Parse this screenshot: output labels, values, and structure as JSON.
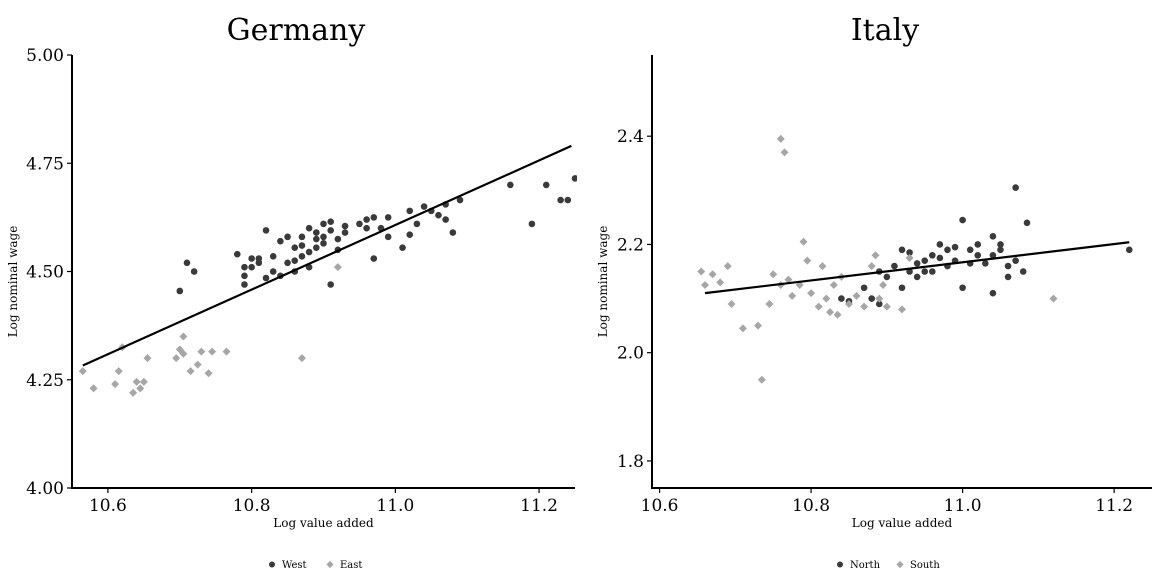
{
  "chart_data": [
    {
      "type": "scatter",
      "title": "Germany",
      "xlabel": "Log value added",
      "ylabel": "Log nominal wage",
      "xlim": [
        10.55,
        11.25
      ],
      "ylim": [
        4.0,
        5.0
      ],
      "xticks": [
        10.6,
        10.8,
        11.0,
        11.2
      ],
      "xtick_labels": [
        "10.6",
        "10.8",
        "11.0",
        "11.2"
      ],
      "yticks": [
        4.0,
        4.25,
        4.5,
        4.75,
        5.0
      ],
      "ytick_labels": [
        "4.00",
        "4.25",
        "4.50",
        "4.75",
        "5.00"
      ],
      "legend_position": "bottom",
      "fit_line": {
        "x": [
          10.565,
          11.245
        ],
        "y": [
          4.283,
          4.79
        ]
      },
      "series": [
        {
          "name": "West",
          "marker": "circle",
          "color": "#3a3a3a",
          "points": [
            [
              10.7,
              4.455
            ],
            [
              10.71,
              4.52
            ],
            [
              10.72,
              4.5
            ],
            [
              10.78,
              4.54
            ],
            [
              10.79,
              4.51
            ],
            [
              10.79,
              4.49
            ],
            [
              10.79,
              4.47
            ],
            [
              10.8,
              4.53
            ],
            [
              10.8,
              4.51
            ],
            [
              10.81,
              4.53
            ],
            [
              10.81,
              4.52
            ],
            [
              10.82,
              4.485
            ],
            [
              10.82,
              4.595
            ],
            [
              10.83,
              4.5
            ],
            [
              10.83,
              4.535
            ],
            [
              10.84,
              4.57
            ],
            [
              10.84,
              4.49
            ],
            [
              10.85,
              4.58
            ],
            [
              10.85,
              4.52
            ],
            [
              10.86,
              4.555
            ],
            [
              10.86,
              4.5
            ],
            [
              10.86,
              4.525
            ],
            [
              10.87,
              4.56
            ],
            [
              10.87,
              4.535
            ],
            [
              10.87,
              4.58
            ],
            [
              10.88,
              4.545
            ],
            [
              10.88,
              4.6
            ],
            [
              10.88,
              4.51
            ],
            [
              10.89,
              4.555
            ],
            [
              10.89,
              4.575
            ],
            [
              10.89,
              4.59
            ],
            [
              10.9,
              4.565
            ],
            [
              10.9,
              4.61
            ],
            [
              10.9,
              4.58
            ],
            [
              10.91,
              4.615
            ],
            [
              10.91,
              4.595
            ],
            [
              10.91,
              4.47
            ],
            [
              10.92,
              4.55
            ],
            [
              10.92,
              4.575
            ],
            [
              10.93,
              4.605
            ],
            [
              10.93,
              4.59
            ],
            [
              10.95,
              4.61
            ],
            [
              10.96,
              4.6
            ],
            [
              10.96,
              4.62
            ],
            [
              10.97,
              4.625
            ],
            [
              10.97,
              4.53
            ],
            [
              10.98,
              4.6
            ],
            [
              10.99,
              4.625
            ],
            [
              10.99,
              4.58
            ],
            [
              11.01,
              4.555
            ],
            [
              11.02,
              4.585
            ],
            [
              11.02,
              4.64
            ],
            [
              11.03,
              4.61
            ],
            [
              11.04,
              4.65
            ],
            [
              11.05,
              4.64
            ],
            [
              11.06,
              4.63
            ],
            [
              11.07,
              4.655
            ],
            [
              11.07,
              4.62
            ],
            [
              11.08,
              4.59
            ],
            [
              11.09,
              4.665
            ],
            [
              11.16,
              4.7
            ],
            [
              11.19,
              4.61
            ],
            [
              11.21,
              4.7
            ],
            [
              11.23,
              4.665
            ],
            [
              11.24,
              4.665
            ],
            [
              11.25,
              4.715
            ]
          ]
        },
        {
          "name": "East",
          "marker": "diamond",
          "color": "#a6a6a6",
          "points": [
            [
              10.565,
              4.27
            ],
            [
              10.58,
              4.23
            ],
            [
              10.61,
              4.24
            ],
            [
              10.615,
              4.27
            ],
            [
              10.62,
              4.325
            ],
            [
              10.635,
              4.22
            ],
            [
              10.64,
              4.245
            ],
            [
              10.645,
              4.23
            ],
            [
              10.65,
              4.245
            ],
            [
              10.655,
              4.3
            ],
            [
              10.695,
              4.3
            ],
            [
              10.7,
              4.32
            ],
            [
              10.705,
              4.35
            ],
            [
              10.705,
              4.31
            ],
            [
              10.715,
              4.27
            ],
            [
              10.725,
              4.285
            ],
            [
              10.73,
              4.315
            ],
            [
              10.74,
              4.265
            ],
            [
              10.745,
              4.315
            ],
            [
              10.765,
              4.315
            ],
            [
              10.87,
              4.3
            ],
            [
              10.92,
              4.51
            ]
          ]
        }
      ]
    },
    {
      "type": "scatter",
      "title": "Italy",
      "xlabel": "Log value added",
      "ylabel": "Log nominal wage",
      "xlim": [
        10.59,
        11.25
      ],
      "ylim": [
        1.75,
        2.55
      ],
      "xticks": [
        10.6,
        10.8,
        11.0,
        11.2
      ],
      "xtick_labels": [
        "10.6",
        "10.8",
        "11.0",
        "11.2"
      ],
      "yticks": [
        1.8,
        2.0,
        2.2,
        2.4
      ],
      "ytick_labels": [
        "1.8",
        "2.0",
        "2.2",
        "2.4"
      ],
      "legend_position": "bottom",
      "fit_line": {
        "x": [
          10.66,
          11.22
        ],
        "y": [
          2.11,
          2.204
        ]
      },
      "series": [
        {
          "name": "North",
          "marker": "circle",
          "color": "#3a3a3a",
          "points": [
            [
              10.84,
              2.1
            ],
            [
              10.85,
              2.095
            ],
            [
              10.87,
              2.12
            ],
            [
              10.88,
              2.1
            ],
            [
              10.89,
              2.15
            ],
            [
              10.89,
              2.09
            ],
            [
              10.9,
              2.14
            ],
            [
              10.91,
              2.16
            ],
            [
              10.92,
              2.19
            ],
            [
              10.92,
              2.12
            ],
            [
              10.93,
              2.15
            ],
            [
              10.93,
              2.185
            ],
            [
              10.94,
              2.165
            ],
            [
              10.94,
              2.14
            ],
            [
              10.95,
              2.17
            ],
            [
              10.95,
              2.15
            ],
            [
              10.96,
              2.18
            ],
            [
              10.96,
              2.15
            ],
            [
              10.97,
              2.2
            ],
            [
              10.97,
              2.175
            ],
            [
              10.98,
              2.19
            ],
            [
              10.98,
              2.16
            ],
            [
              10.99,
              2.195
            ],
            [
              10.99,
              2.17
            ],
            [
              11.0,
              2.245
            ],
            [
              11.0,
              2.12
            ],
            [
              11.01,
              2.19
            ],
            [
              11.01,
              2.165
            ],
            [
              11.02,
              2.2
            ],
            [
              11.02,
              2.18
            ],
            [
              11.03,
              2.165
            ],
            [
              11.04,
              2.215
            ],
            [
              11.04,
              2.18
            ],
            [
              11.04,
              2.11
            ],
            [
              11.05,
              2.19
            ],
            [
              11.05,
              2.2
            ],
            [
              11.06,
              2.16
            ],
            [
              11.06,
              2.14
            ],
            [
              11.07,
              2.305
            ],
            [
              11.07,
              2.17
            ],
            [
              11.08,
              2.15
            ],
            [
              11.085,
              2.24
            ],
            [
              11.22,
              2.19
            ]
          ]
        },
        {
          "name": "South",
          "marker": "diamond",
          "color": "#a6a6a6",
          "points": [
            [
              10.655,
              2.15
            ],
            [
              10.66,
              2.125
            ],
            [
              10.67,
              2.145
            ],
            [
              10.68,
              2.13
            ],
            [
              10.69,
              2.16
            ],
            [
              10.695,
              2.09
            ],
            [
              10.71,
              2.045
            ],
            [
              10.73,
              2.05
            ],
            [
              10.735,
              1.95
            ],
            [
              10.745,
              2.09
            ],
            [
              10.75,
              2.145
            ],
            [
              10.76,
              2.125
            ],
            [
              10.76,
              2.395
            ],
            [
              10.765,
              2.37
            ],
            [
              10.77,
              2.135
            ],
            [
              10.775,
              2.105
            ],
            [
              10.785,
              2.125
            ],
            [
              10.79,
              2.205
            ],
            [
              10.795,
              2.17
            ],
            [
              10.8,
              2.11
            ],
            [
              10.81,
              2.085
            ],
            [
              10.815,
              2.16
            ],
            [
              10.82,
              2.1
            ],
            [
              10.825,
              2.075
            ],
            [
              10.83,
              2.125
            ],
            [
              10.835,
              2.07
            ],
            [
              10.84,
              2.14
            ],
            [
              10.85,
              2.09
            ],
            [
              10.86,
              2.105
            ],
            [
              10.87,
              2.085
            ],
            [
              10.88,
              2.16
            ],
            [
              10.885,
              2.18
            ],
            [
              10.89,
              2.1
            ],
            [
              10.895,
              2.125
            ],
            [
              10.9,
              2.085
            ],
            [
              10.92,
              2.08
            ],
            [
              10.93,
              2.175
            ],
            [
              11.12,
              2.1
            ]
          ]
        }
      ]
    }
  ]
}
